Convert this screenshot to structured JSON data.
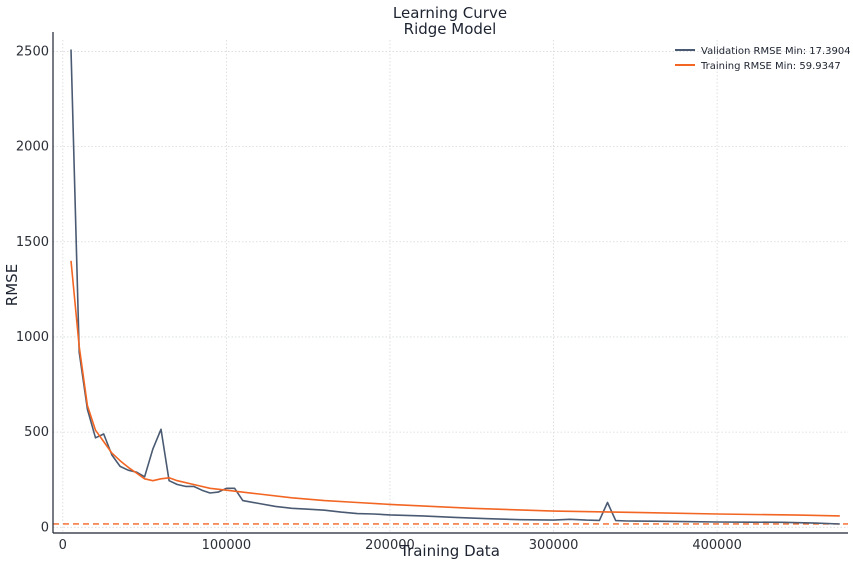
{
  "chart_data": {
    "type": "line",
    "title": "Learning Curve",
    "subtitle": "Ridge Model",
    "xlabel": "Training Data",
    "ylabel": "RMSE",
    "xlim": [
      -6000,
      480000
    ],
    "ylim": [
      -30,
      2560
    ],
    "xticks": [
      0,
      100000,
      200000,
      300000,
      400000
    ],
    "xtick_labels": [
      "0",
      "100000",
      "200000",
      "300000",
      "400000"
    ],
    "yticks": [
      0,
      500,
      1000,
      1500,
      2000,
      2500
    ],
    "ytick_labels": [
      "0",
      "500",
      "1000",
      "1500",
      "2000",
      "2500"
    ],
    "grid": true,
    "legend_position": "top-right",
    "series": [
      {
        "name": "Validation RMSE Min: 17.3904",
        "color": "#4a5a72",
        "x": [
          5000,
          10000,
          15000,
          20000,
          25000,
          30000,
          35000,
          40000,
          45000,
          50000,
          55000,
          60000,
          65000,
          70000,
          75000,
          80000,
          85000,
          90000,
          95000,
          100000,
          105000,
          110000,
          120000,
          130000,
          140000,
          150000,
          160000,
          170000,
          180000,
          190000,
          200000,
          220000,
          240000,
          260000,
          280000,
          300000,
          310000,
          320000,
          328000,
          333000,
          338000,
          345000,
          360000,
          380000,
          400000,
          420000,
          440000,
          460000,
          475000
        ],
        "y": [
          2510,
          920,
          620,
          470,
          490,
          380,
          320,
          300,
          290,
          265,
          410,
          515,
          245,
          225,
          215,
          215,
          195,
          180,
          185,
          205,
          205,
          140,
          125,
          110,
          100,
          95,
          90,
          80,
          72,
          70,
          65,
          60,
          52,
          45,
          40,
          38,
          42,
          38,
          36,
          130,
          35,
          33,
          32,
          30,
          28,
          27,
          26,
          22,
          17.39
        ]
      },
      {
        "name": "Training RMSE Min: 59.9347",
        "color": "#f26522",
        "x": [
          5000,
          10000,
          15000,
          20000,
          25000,
          30000,
          35000,
          40000,
          45000,
          50000,
          55000,
          60000,
          65000,
          70000,
          80000,
          90000,
          100000,
          120000,
          140000,
          160000,
          180000,
          200000,
          250000,
          300000,
          350000,
          400000,
          450000,
          475000
        ],
        "y": [
          1400,
          950,
          640,
          510,
          450,
          390,
          350,
          315,
          285,
          255,
          245,
          255,
          260,
          245,
          225,
          205,
          195,
          175,
          155,
          140,
          130,
          120,
          100,
          85,
          78,
          70,
          64,
          59.93
        ]
      }
    ],
    "reference_lines": [
      {
        "y": 17.3904,
        "color": "#f26522",
        "style": "dashed"
      }
    ]
  }
}
